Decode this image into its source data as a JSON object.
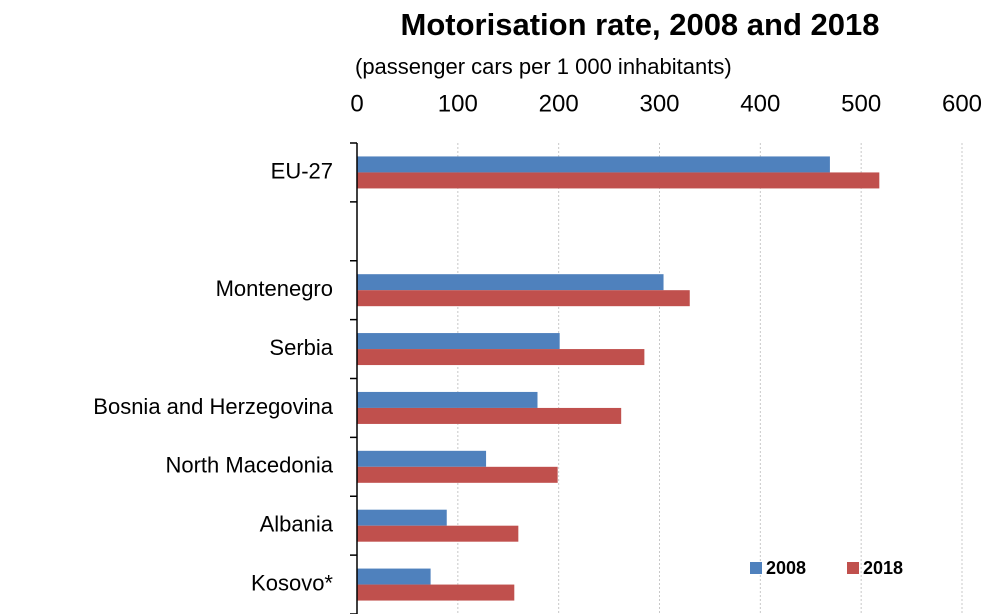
{
  "chart_data": {
    "type": "hbar",
    "title": "Motorisation rate, 2008 and 2018",
    "subtitle": "(passenger cars per 1 000 inhabitants)",
    "categories": [
      "EU-27",
      null,
      "Montenegro",
      "Serbia",
      "Bosnia and Herzegovina",
      "North Macedonia",
      "Albania",
      "Kosovo*"
    ],
    "series": [
      {
        "name": "2008",
        "color": "#4f81bd",
        "values": [
          469,
          null,
          304,
          201,
          179,
          128,
          89,
          73
        ]
      },
      {
        "name": "2018",
        "color": "#c0504d",
        "values": [
          518,
          null,
          330,
          285,
          262,
          199,
          160,
          156
        ]
      }
    ],
    "xlim": [
      0,
      600
    ],
    "xticks": [
      0,
      100,
      200,
      300,
      400,
      500,
      600
    ],
    "grid": true,
    "legend": "bottom-right"
  }
}
